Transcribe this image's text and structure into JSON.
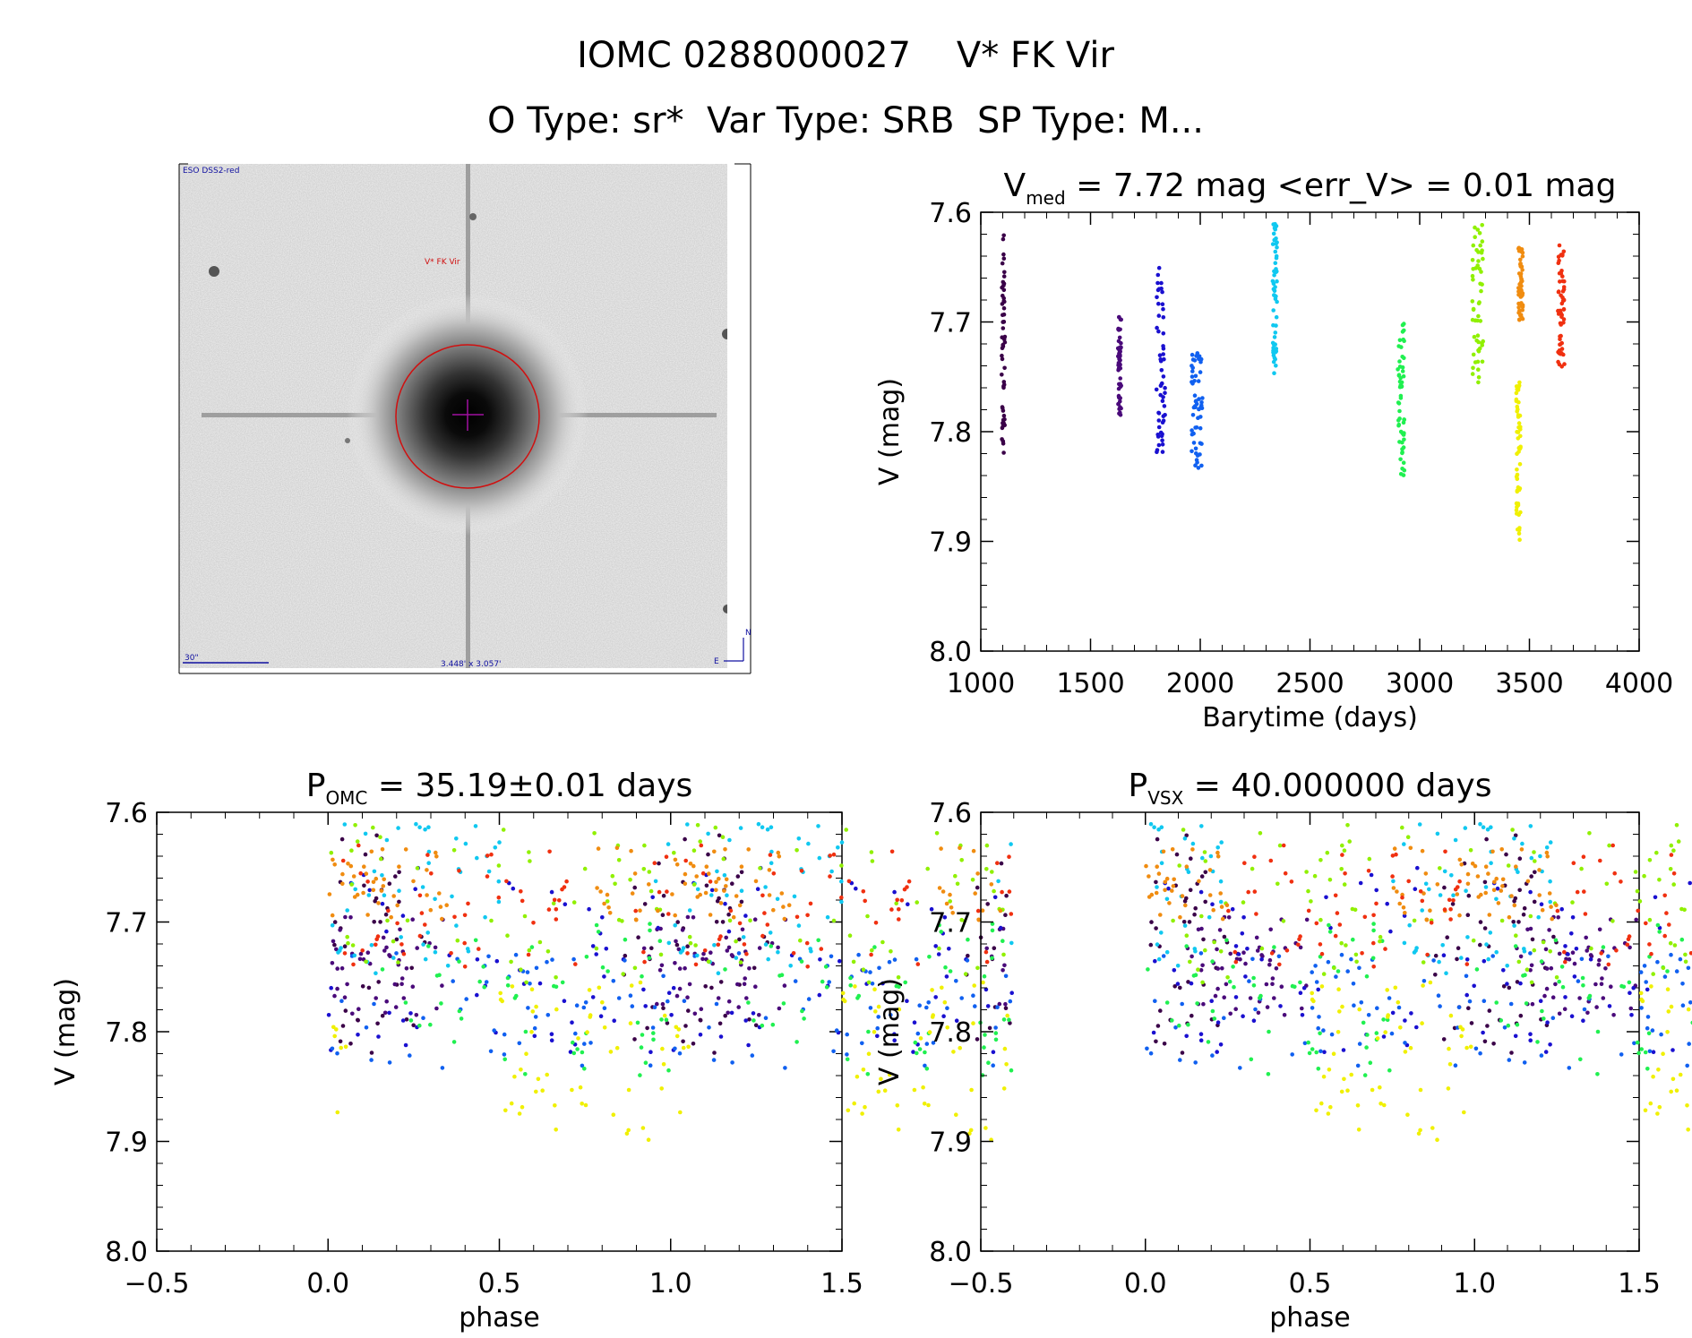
{
  "header": {
    "title": "IOMC 0288000027    V* FK Vir",
    "subtitle": "O Type: sr*  Var Type: SRB  SP Type: M..."
  },
  "finder": {
    "survey_label": "ESO DSS2-red",
    "target_label": "V* FK Vir",
    "scale_label": "30\"",
    "fov_label": "3.448' x 3.057'",
    "compass_n": "N",
    "compass_e": "E"
  },
  "colors": {
    "palette": [
      "#3a0048",
      "#4a0a7a",
      "#1a10d0",
      "#1060f0",
      "#10c8f0",
      "#10e8c0",
      "#20f050",
      "#90f000",
      "#f0f000",
      "#f08c10",
      "#f03010"
    ],
    "finder_marker": "#d01010",
    "finder_cross": "#a010a0",
    "finder_text": "#1010a0"
  },
  "chart_data": [
    {
      "id": "lightcurve",
      "type": "scatter",
      "title_main": "V",
      "title_sub": "med",
      "title_rest": " = 7.72 mag <err_V> = 0.01 mag",
      "xlabel": "Barytime (days)",
      "ylabel": "V (mag)",
      "xlim": [
        1000,
        4000
      ],
      "ylim": [
        8.0,
        7.6
      ],
      "xticks": [
        1000,
        1500,
        2000,
        2500,
        3000,
        3500,
        4000
      ],
      "xticklabels": [
        "1000",
        "1500",
        "2000",
        "2500",
        "3000",
        "3500",
        "4000"
      ],
      "yticks": [
        7.6,
        7.7,
        7.8,
        7.9,
        8.0
      ],
      "yticklabels": [
        "7.6",
        "7.7",
        "7.8",
        "7.9",
        "8.0"
      ],
      "seasons": [
        {
          "x_range": [
            1095,
            1110
          ],
          "v_range": [
            7.62,
            7.82
          ],
          "color": "#3a0048"
        },
        {
          "x_range": [
            1625,
            1640
          ],
          "v_range": [
            7.695,
            7.785
          ],
          "color": "#4a0a7a"
        },
        {
          "x_range": [
            1800,
            1840
          ],
          "v_range": [
            7.65,
            7.82
          ],
          "color": "#1a10d0"
        },
        {
          "x_range": [
            1960,
            2010
          ],
          "v_range": [
            7.725,
            7.835
          ],
          "color": "#1060f0"
        },
        {
          "x_range": [
            2330,
            2350
          ],
          "v_range": [
            7.61,
            7.75
          ],
          "color": "#10c8f0"
        },
        {
          "x_range": [
            2900,
            2930
          ],
          "v_range": [
            7.7,
            7.84
          ],
          "color": "#20f050"
        },
        {
          "x_range": [
            3240,
            3290
          ],
          "v_range": [
            7.61,
            7.76
          ],
          "color": "#90f000"
        },
        {
          "x_range": [
            3440,
            3460
          ],
          "v_range": [
            7.755,
            7.905
          ],
          "color": "#f0f000"
        },
        {
          "x_range": [
            3450,
            3470
          ],
          "v_range": [
            7.63,
            7.7
          ],
          "color": "#f08c10"
        },
        {
          "x_range": [
            3630,
            3660
          ],
          "v_range": [
            7.63,
            7.745
          ],
          "color": "#f03010"
        }
      ]
    },
    {
      "id": "phase-omc",
      "type": "scatter",
      "title_main": "P",
      "title_sub": "OMC",
      "title_rest": " = 35.19±0.01 days",
      "xlabel": "phase",
      "ylabel": "V (mag)",
      "xlim": [
        -0.5,
        1.5
      ],
      "ylim": [
        8.0,
        7.6
      ],
      "xticks": [
        -0.5,
        0.0,
        0.5,
        1.0,
        1.5
      ],
      "xticklabels": [
        "−0.5",
        "0.0",
        "0.5",
        "1.0",
        "1.5"
      ],
      "yticks": [
        7.6,
        7.7,
        7.8,
        7.9,
        8.0
      ],
      "yticklabels": [
        "7.6",
        "7.7",
        "7.8",
        "7.9",
        "8.0"
      ]
    },
    {
      "id": "phase-vsx",
      "type": "scatter",
      "title_main": "P",
      "title_sub": "VSX",
      "title_rest": " = 40.000000 days",
      "xlabel": "phase",
      "ylabel": "V (mag)",
      "xlim": [
        -0.5,
        1.5
      ],
      "ylim": [
        8.0,
        7.6
      ],
      "xticks": [
        -0.5,
        0.0,
        0.5,
        1.0,
        1.5
      ],
      "xticklabels": [
        "−0.5",
        "0.0",
        "0.5",
        "1.0",
        "1.5"
      ],
      "yticks": [
        7.6,
        7.7,
        7.8,
        7.9,
        8.0
      ],
      "yticklabels": [
        "7.6",
        "7.7",
        "7.8",
        "7.9",
        "8.0"
      ]
    }
  ]
}
